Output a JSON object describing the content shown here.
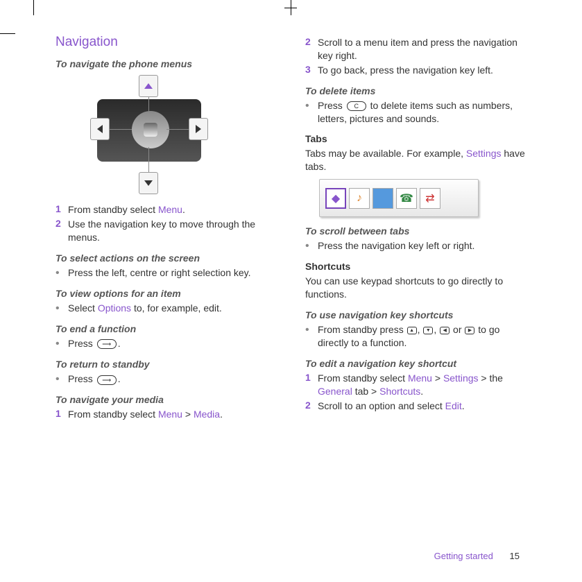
{
  "colors": {
    "accent": "#8855cc",
    "text": "#333333",
    "muted": "#888888"
  },
  "left": {
    "title": "Navigation",
    "sub_nav": "To navigate the phone menus",
    "step1_num": "1",
    "step1_a": "From standby select ",
    "step1_link": "Menu",
    "step1_b": ".",
    "step2_num": "2",
    "step2": "Use the navigation key to move through the menus.",
    "sub_select": "To select actions on the screen",
    "sel_text": "Press the left, centre or right selection key.",
    "sub_view": "To view options for an item",
    "view_a": "Select ",
    "view_link": "Options",
    "view_b": " to, for example, edit.",
    "sub_end": "To end a function",
    "end_a": "Press ",
    "end_b": ".",
    "sub_return": "To return to standby",
    "ret_a": "Press ",
    "ret_b": ".",
    "sub_media": "To navigate your media",
    "media_num": "1",
    "media_a": "From standby select ",
    "media_link1": "Menu",
    "media_gt": " > ",
    "media_link2": "Media",
    "media_b": "."
  },
  "right": {
    "r2_num": "2",
    "r2": "Scroll to a menu item and press the navigation key right.",
    "r3_num": "3",
    "r3": "To go back, press the navigation key left.",
    "sub_delete": "To delete items",
    "del_a": "Press ",
    "del_key": "C",
    "del_b": " to delete items such as numbers, letters, pictures and sounds.",
    "tabs_head": "Tabs",
    "tabs_a": "Tabs may be available. For example, ",
    "tabs_link": "Settings",
    "tabs_b": " have tabs.",
    "sub_scroll": "To scroll between tabs",
    "scroll_text": "Press the navigation key left or right.",
    "sc_head": "Shortcuts",
    "sc_text": "You can use keypad shortcuts to go directly to functions.",
    "sub_use": "To use navigation key shortcuts",
    "use_a": "From standby press ",
    "use_sep1": ", ",
    "use_sep2": ", ",
    "use_or": " or ",
    "use_b": " to go directly to a function.",
    "sub_edit": "To edit a navigation key shortcut",
    "e1_num": "1",
    "e1_a": "From standby select ",
    "e1_l1": "Menu",
    "e1_gt1": " > ",
    "e1_l2": "Settings",
    "e1_gt2": " > the ",
    "e1_l3": "General",
    "e1_mid": " tab > ",
    "e1_l4": "Shortcuts",
    "e1_b": ".",
    "e2_num": "2",
    "e2_a": "Scroll to an option and select ",
    "e2_l": "Edit",
    "e2_b": "."
  },
  "footer": {
    "section": "Getting started",
    "page": "15"
  }
}
